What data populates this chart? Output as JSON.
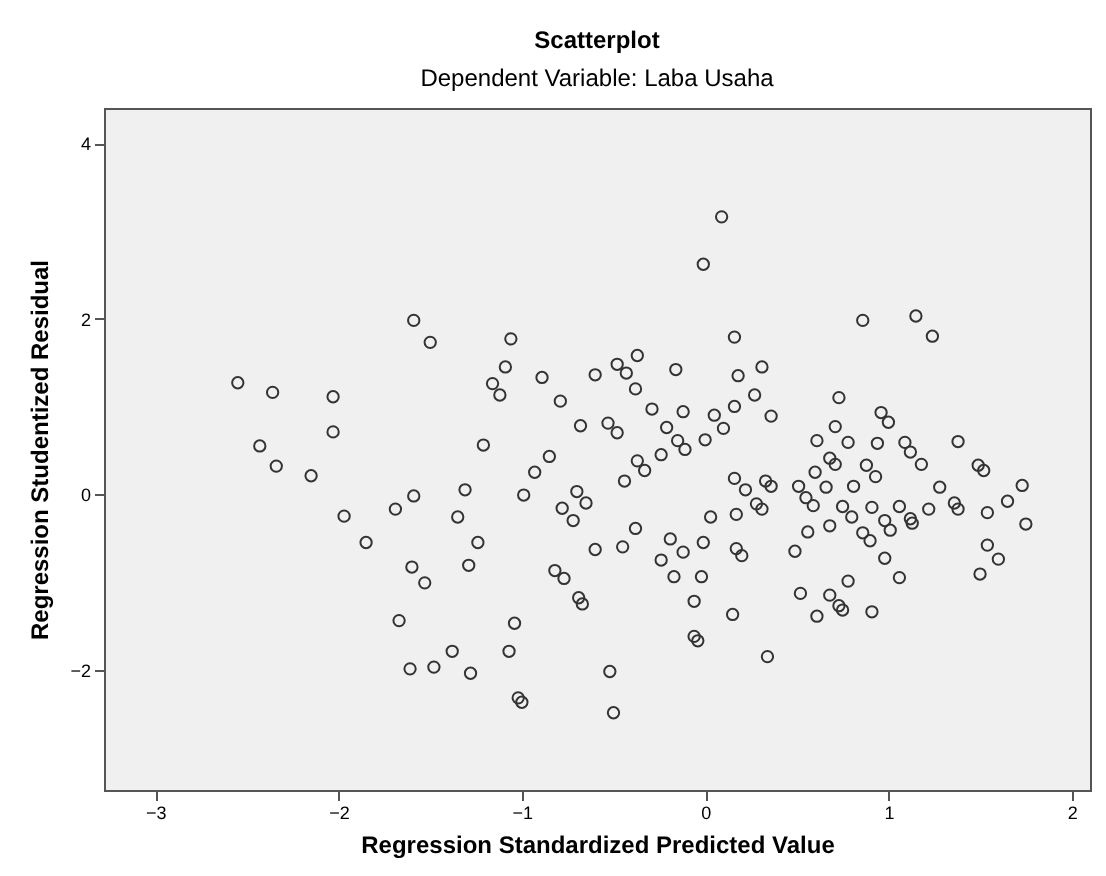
{
  "chart_data": {
    "type": "scatter",
    "title": "Scatterplot",
    "subtitle": "Dependent Variable: Laba Usaha",
    "xlabel": "Regression Standardized Predicted Value",
    "ylabel": "Regression Studentized Residual",
    "xlim": [
      -3.28,
      2.1
    ],
    "ylim": [
      -3.37,
      4.4
    ],
    "xticks": [
      -3,
      -2,
      -1,
      0,
      1,
      2
    ],
    "yticks": [
      -2,
      0,
      2,
      4
    ],
    "grid": false,
    "marker": "circle",
    "x": [
      -2.55,
      -2.36,
      -2.03,
      -1.59,
      -1.5,
      -1.06,
      -1.09,
      -1.16,
      -1.12,
      -0.89,
      -0.79,
      -0.6,
      0.09,
      -0.01,
      0.16,
      0.86,
      1.15,
      1.24,
      -0.37,
      -0.48,
      -0.43,
      -0.38,
      -0.16,
      0.31,
      0.18,
      0.27,
      0.16,
      0.73,
      -0.29,
      -0.12,
      0.05,
      0.96,
      -2.43,
      -2.34,
      -2.15,
      -2.03,
      -1.97,
      -1.85,
      -1.69,
      -1.59,
      -1.6,
      -1.53,
      -1.67,
      -1.61,
      -1.48,
      -1.38,
      -1.28,
      -1.31,
      -1.35,
      -1.24,
      -1.29,
      -1.21,
      -1.04,
      -1.07,
      -1.02,
      -1.0,
      -0.99,
      -0.93,
      -0.85,
      -0.68,
      -0.78,
      -0.7,
      -0.65,
      -0.72,
      -0.6,
      -0.82,
      -0.77,
      -0.69,
      -0.67,
      -0.53,
      -0.48,
      0.36,
      -0.21,
      0.1,
      -0.15,
      -0.11,
      0.0,
      -0.24,
      -0.37,
      -0.33,
      -0.44,
      -0.38,
      -0.45,
      -0.19,
      -0.24,
      -0.12,
      -0.01,
      -0.17,
      -0.02,
      -0.06,
      0.15,
      -0.06,
      -0.04,
      0.34,
      -0.52,
      -0.5,
      0.16,
      0.22,
      0.33,
      0.36,
      0.03,
      0.17,
      0.28,
      0.31,
      0.17,
      0.2,
      0.61,
      0.71,
      0.78,
      0.68,
      0.71,
      0.6,
      0.66,
      0.51,
      0.55,
      0.59,
      0.75,
      0.8,
      0.68,
      0.56,
      0.49,
      0.52,
      0.68,
      0.73,
      0.75,
      0.61,
      0.78,
      0.91,
      0.88,
      0.93,
      0.94,
      0.81,
      0.91,
      0.86,
      0.9,
      0.98,
      1.01,
      0.98,
      1.06,
      1.06,
      1.12,
      1.13,
      1.0,
      1.09,
      1.12,
      1.18,
      1.22,
      1.28,
      1.36,
      1.38,
      1.38,
      1.49,
      1.52,
      1.54,
      1.54,
      1.6,
      1.5,
      1.65,
      1.73,
      1.75
    ],
    "series": [
      {
        "color": "#333333",
        "values": [
          1.27,
          1.16,
          1.11,
          1.98,
          1.73,
          1.77,
          1.45,
          1.26,
          1.13,
          1.33,
          1.06,
          1.36,
          3.16,
          2.62,
          1.79,
          1.98,
          2.03,
          1.8,
          1.58,
          1.48,
          1.38,
          1.2,
          1.42,
          1.45,
          1.35,
          1.13,
          1.0,
          1.1,
          0.97,
          0.94,
          0.9,
          0.93,
          0.55,
          0.32,
          0.21,
          0.71,
          -0.25,
          -0.55,
          -0.17,
          -0.02,
          -0.83,
          -1.01,
          -1.44,
          -1.99,
          -1.97,
          -1.79,
          -2.04,
          0.05,
          -0.26,
          -0.55,
          -0.81,
          0.56,
          -1.47,
          -1.79,
          -2.32,
          -2.37,
          -0.01,
          0.25,
          0.43,
          0.78,
          -0.16,
          0.03,
          -0.1,
          -0.3,
          -0.63,
          -0.87,
          -0.96,
          -1.18,
          -1.25,
          0.81,
          0.7,
          0.89,
          0.76,
          0.75,
          0.61,
          0.51,
          0.62,
          0.45,
          0.38,
          0.27,
          0.15,
          -0.39,
          -0.6,
          -0.51,
          -0.75,
          -0.66,
          -0.55,
          -0.94,
          -0.94,
          -1.22,
          -1.37,
          -1.62,
          -1.67,
          -1.85,
          -2.02,
          -2.49,
          0.18,
          0.05,
          0.15,
          0.09,
          -0.26,
          -0.23,
          -0.11,
          -0.17,
          -0.62,
          -0.7,
          0.61,
          0.77,
          0.59,
          0.41,
          0.34,
          0.25,
          0.08,
          0.09,
          -0.04,
          -0.13,
          -0.14,
          -0.26,
          -0.36,
          -0.43,
          -0.65,
          -1.13,
          -1.15,
          -1.27,
          -1.32,
          -1.39,
          -0.99,
          -1.34,
          0.33,
          0.2,
          0.58,
          0.09,
          -0.15,
          -0.44,
          -0.53,
          -0.3,
          -0.41,
          -0.73,
          -0.95,
          -0.14,
          -0.28,
          -0.33,
          0.82,
          0.59,
          0.48,
          0.34,
          -0.17,
          0.08,
          -0.1,
          -0.17,
          0.6,
          0.33,
          0.27,
          -0.21,
          -0.58,
          -0.74,
          -0.91,
          -0.08,
          0.1,
          -0.34
        ]
      }
    ]
  }
}
